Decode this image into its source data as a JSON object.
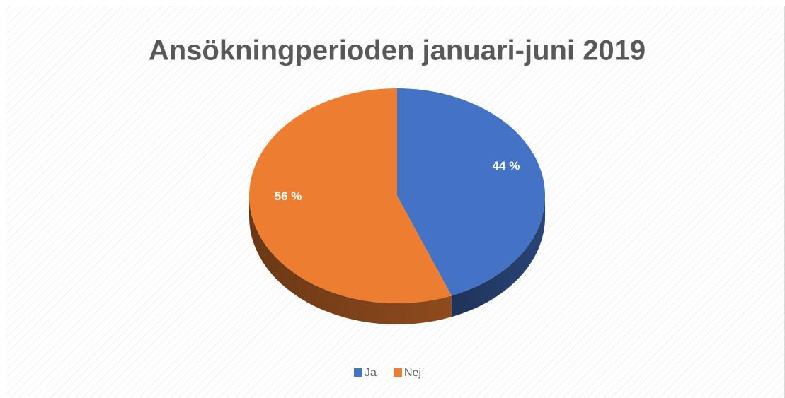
{
  "chart_data": {
    "type": "pie",
    "title": "Ansökningperioden januari-juni 2019",
    "categories": [
      "Ja",
      "Nej"
    ],
    "values": [
      44,
      56
    ],
    "value_labels": [
      "44 %",
      "56 %"
    ],
    "colors": [
      "#4472c4",
      "#ed7d31"
    ],
    "legend": "bottom"
  }
}
